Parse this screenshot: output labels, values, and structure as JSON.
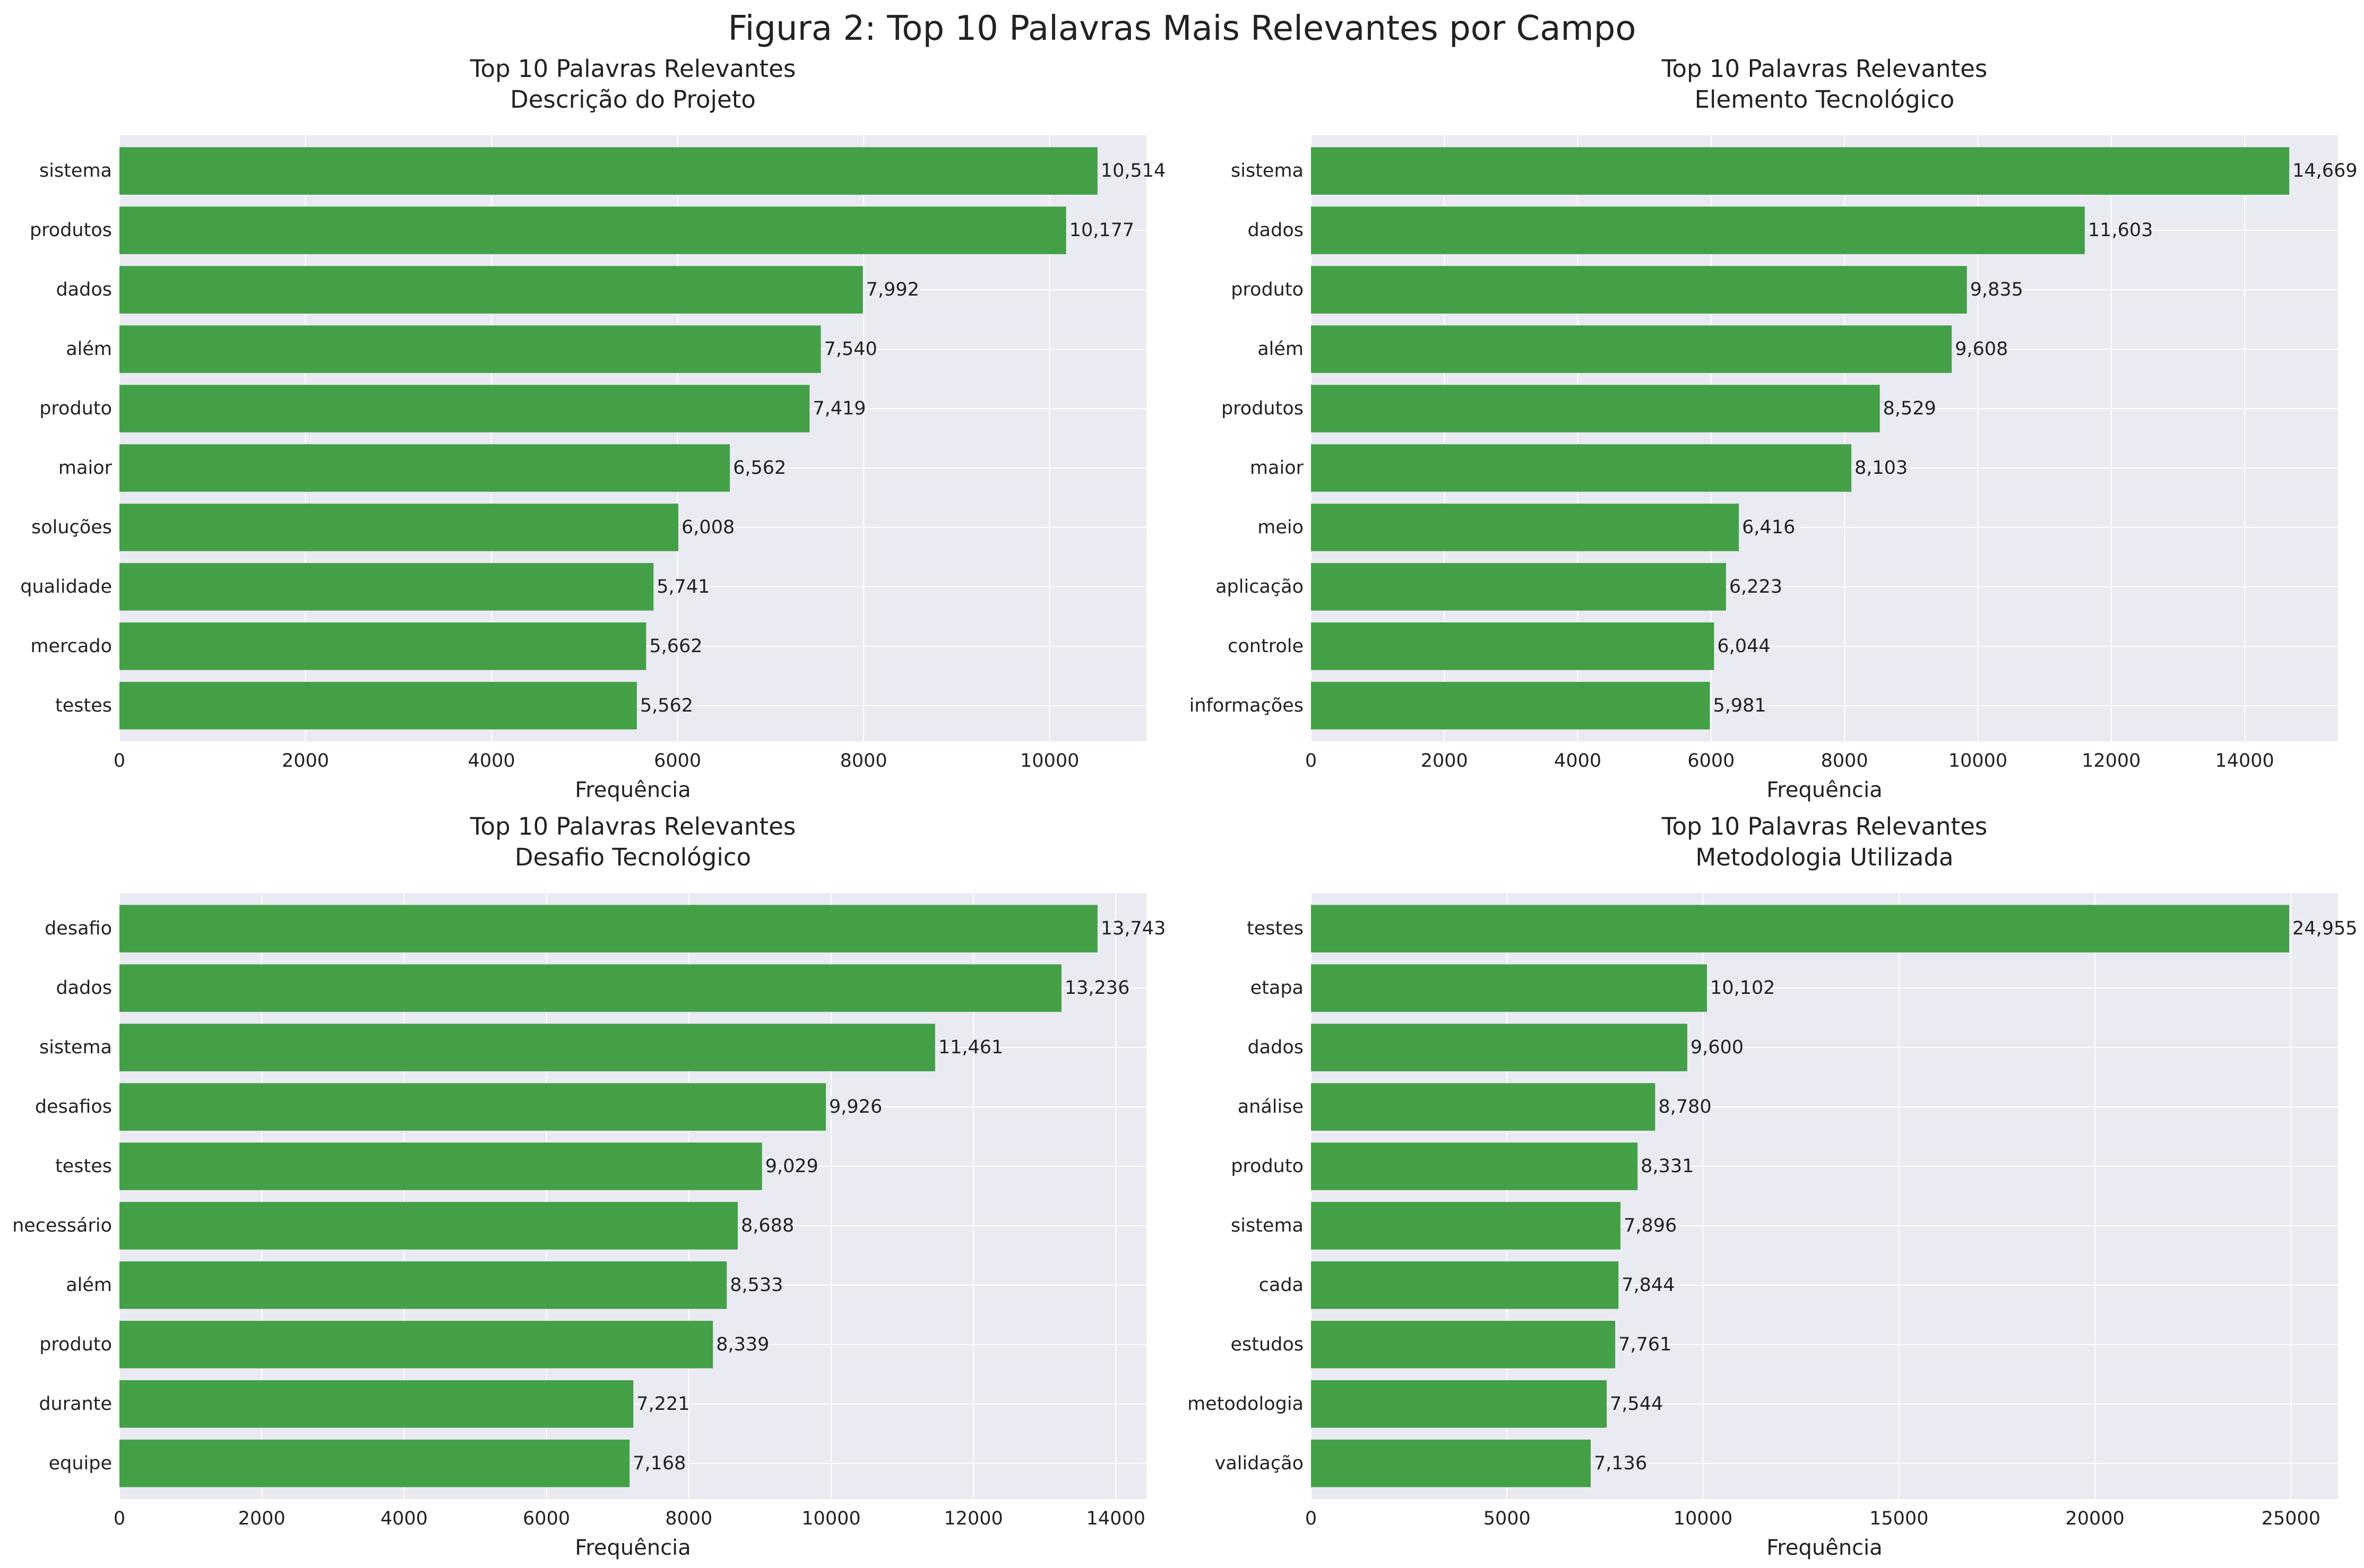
{
  "figure_title": "Figura 2: Top 10 Palavras Mais Relevantes por Campo",
  "colors": {
    "bar": "#43a047",
    "plot_bg": "#eaeaf2",
    "grid": "#ffffff",
    "text": "#222222"
  },
  "chart_data": [
    {
      "type": "bar",
      "orientation": "horizontal",
      "title": "Top 10 Palavras Relevantes",
      "subtitle": "Descrição do Projeto",
      "xlabel": "Frequência",
      "ylabel": "",
      "xlim": [
        0,
        11040
      ],
      "xticks": [
        0,
        2000,
        4000,
        6000,
        8000,
        10000
      ],
      "grid": true,
      "categories": [
        "sistema",
        "produtos",
        "dados",
        "além",
        "produto",
        "maior",
        "soluções",
        "qualidade",
        "mercado",
        "testes"
      ],
      "values": [
        10514,
        10177,
        7992,
        7540,
        7419,
        6562,
        6008,
        5741,
        5662,
        5562
      ],
      "value_labels": [
        "10,514",
        "10,177",
        "7,992",
        "7,540",
        "7,419",
        "6,562",
        "6,008",
        "5,741",
        "5,662",
        "5,562"
      ]
    },
    {
      "type": "bar",
      "orientation": "horizontal",
      "title": "Top 10 Palavras Relevantes",
      "subtitle": "Elemento Tecnológico",
      "xlabel": "Frequência",
      "ylabel": "",
      "xlim": [
        0,
        15400
      ],
      "xticks": [
        0,
        2000,
        4000,
        6000,
        8000,
        10000,
        12000,
        14000
      ],
      "grid": true,
      "categories": [
        "sistema",
        "dados",
        "produto",
        "além",
        "produtos",
        "maior",
        "meio",
        "aplicação",
        "controle",
        "informações"
      ],
      "values": [
        14669,
        11603,
        9835,
        9608,
        8529,
        8103,
        6416,
        6223,
        6044,
        5981
      ],
      "value_labels": [
        "14,669",
        "11,603",
        "9,835",
        "9,608",
        "8,529",
        "8,103",
        "6,416",
        "6,223",
        "6,044",
        "5,981"
      ]
    },
    {
      "type": "bar",
      "orientation": "horizontal",
      "title": "Top 10 Palavras Relevantes",
      "subtitle": "Desafio Tecnológico",
      "xlabel": "Frequência",
      "ylabel": "",
      "xlim": [
        0,
        14430
      ],
      "xticks": [
        0,
        2000,
        4000,
        6000,
        8000,
        10000,
        12000,
        14000
      ],
      "grid": true,
      "categories": [
        "desafio",
        "dados",
        "sistema",
        "desafios",
        "testes",
        "necessário",
        "além",
        "produto",
        "durante",
        "equipe"
      ],
      "values": [
        13743,
        13236,
        11461,
        9926,
        9029,
        8688,
        8533,
        8339,
        7221,
        7168
      ],
      "value_labels": [
        "13,743",
        "13,236",
        "11,461",
        "9,926",
        "9,029",
        "8,688",
        "8,533",
        "8,339",
        "7,221",
        "7,168"
      ]
    },
    {
      "type": "bar",
      "orientation": "horizontal",
      "title": "Top 10 Palavras Relevantes",
      "subtitle": "Metodologia Utilizada",
      "xlabel": "Frequência",
      "ylabel": "",
      "xlim": [
        0,
        26200
      ],
      "xticks": [
        0,
        5000,
        10000,
        15000,
        20000,
        25000
      ],
      "grid": true,
      "categories": [
        "testes",
        "etapa",
        "dados",
        "análise",
        "produto",
        "sistema",
        "cada",
        "estudos",
        "metodologia",
        "validação"
      ],
      "values": [
        24955,
        10102,
        9600,
        8780,
        8331,
        7896,
        7844,
        7761,
        7544,
        7136
      ],
      "value_labels": [
        "24,955",
        "10,102",
        "9,600",
        "8,780",
        "8,331",
        "7,896",
        "7,844",
        "7,761",
        "7,544",
        "7,136"
      ]
    }
  ]
}
